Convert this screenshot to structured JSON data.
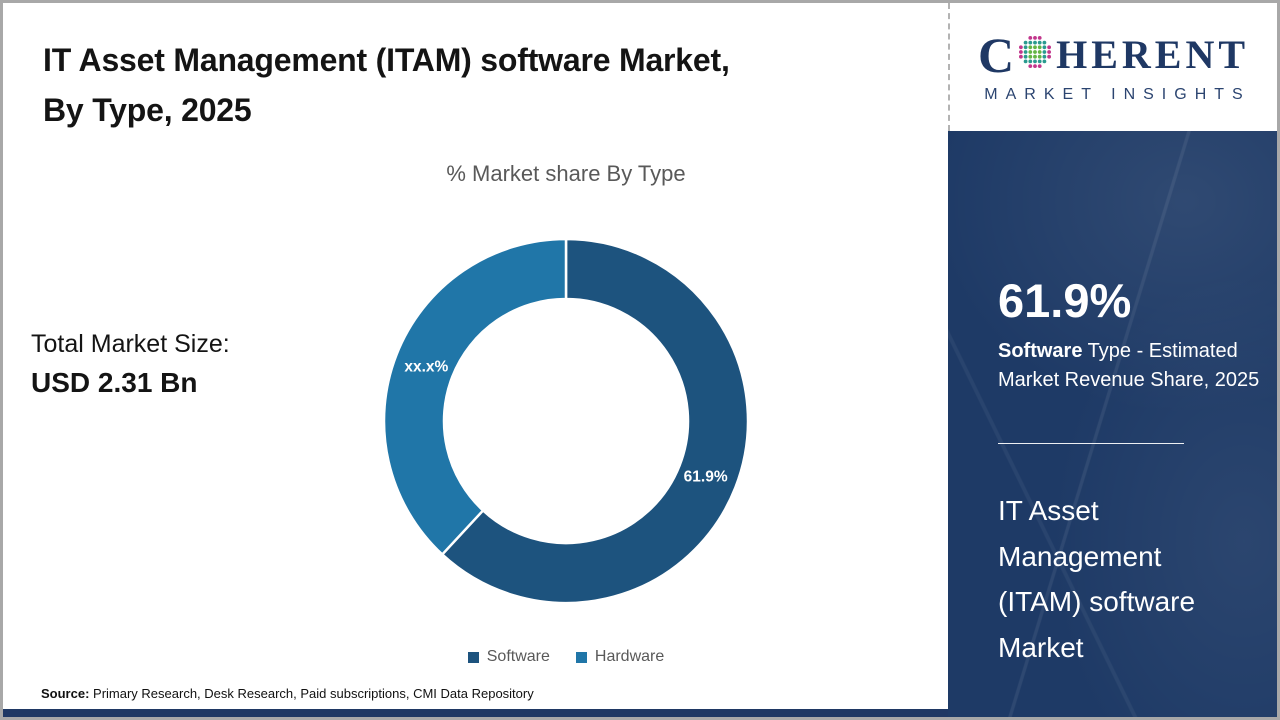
{
  "page": {
    "title_line1": "IT Asset Management (ITAM) software Market,",
    "title_line2": "By Type, 2025",
    "source_label": "Source:",
    "source_text": " Primary Research, Desk Research, Paid subscriptions, CMI Data Repository"
  },
  "total_market": {
    "label": "Total Market Size:",
    "value": "USD 2.31 Bn"
  },
  "chart_data": {
    "type": "pie",
    "subtype": "donut",
    "title": "% Market share By Type",
    "start_angle_deg": 0,
    "direction": "clockwise",
    "legend_position": "bottom",
    "slices": [
      {
        "name": "Software",
        "value": 61.9,
        "label": "61.9%",
        "color": "#1d537e"
      },
      {
        "name": "Hardware",
        "value": 38.1,
        "label": "xx.x%",
        "color": "#2076a8"
      }
    ]
  },
  "sidebar": {
    "logo": {
      "text_c": "C",
      "text_rest": "HERENT",
      "subtitle": "MARKET INSIGHTS",
      "globe_colors": [
        "#2a9a8f",
        "#63b545",
        "#c2368c"
      ]
    },
    "stat_value": "61.9%",
    "stat_desc_bold": "Software",
    "stat_desc_rest": " Type - Estimated Market Revenue Share, 2025",
    "market_name": "IT Asset Management (ITAM) software Market"
  },
  "colors": {
    "navy": "#1f3864",
    "sidebar-bg": "#1e3a66",
    "border-gray": "#a8a8a8",
    "text-dark": "#141414",
    "text-gray": "#595959"
  }
}
